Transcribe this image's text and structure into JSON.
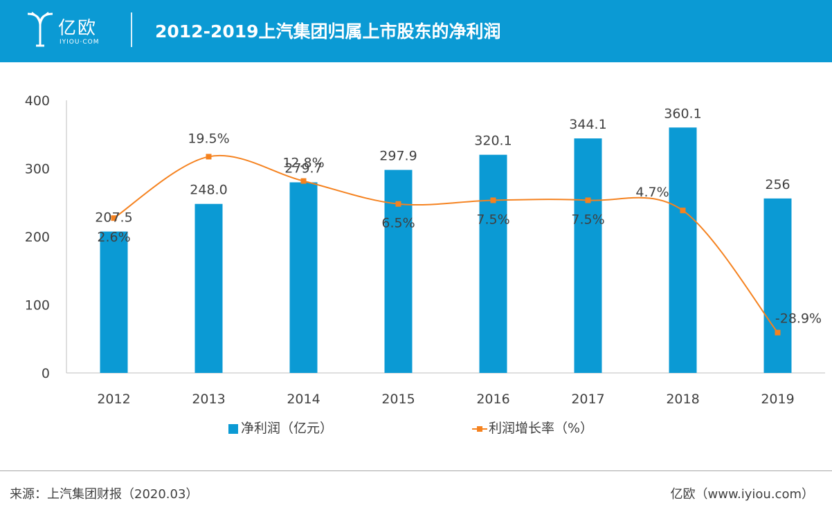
{
  "header": {
    "logo_text": "亿欧",
    "logo_sub": "IYIOU·COM",
    "title": "2012-2019上汽集团归属上市股东的净利润"
  },
  "colors": {
    "brand": "#0b9ad4",
    "bar": "#0b9ad4",
    "line": "#f5821f"
  },
  "chart_data": {
    "type": "bar",
    "categories": [
      "2012",
      "2013",
      "2014",
      "2015",
      "2016",
      "2017",
      "2018",
      "2019"
    ],
    "ylim": [
      0,
      400
    ],
    "yticks": [
      0,
      100,
      200,
      300,
      400
    ],
    "series": [
      {
        "name": "净利润（亿元）",
        "type": "bar",
        "values": [
          207.5,
          248.0,
          279.7,
          297.9,
          320.1,
          344.1,
          360.1,
          256
        ],
        "labels": [
          "207.5",
          "248.0",
          "279.7",
          "297.9",
          "320.1",
          "344.1",
          "360.1",
          "256"
        ]
      },
      {
        "name": "利润增长率（%）",
        "type": "line",
        "values": [
          2.6,
          19.5,
          12.8,
          6.5,
          7.5,
          7.5,
          4.7,
          -28.9
        ],
        "labels": [
          "2.6%",
          "19.5%",
          "12.8%",
          "6.5%",
          "7.5%",
          "7.5%",
          "4.7%",
          "-28.9%"
        ]
      }
    ],
    "grid": false,
    "legend_position": "bottom-center"
  },
  "legend": {
    "bar_label": "净利润（亿元）",
    "line_label": "利润增长率（%）"
  },
  "footer": {
    "source": "来源：上汽集团财报（2020.03）",
    "credit": "亿欧（www.iyiou.com）"
  }
}
